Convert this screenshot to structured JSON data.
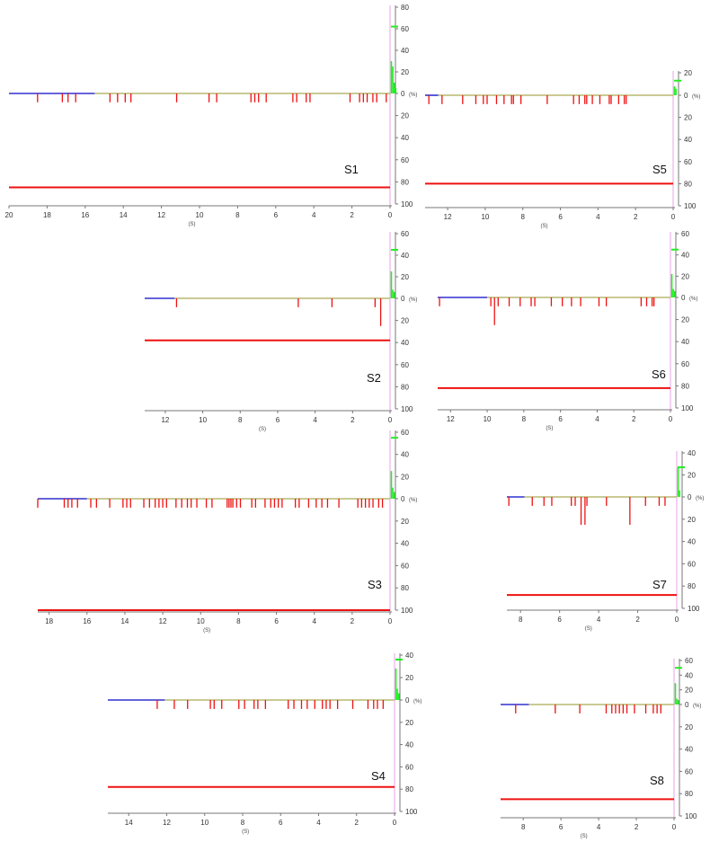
{
  "colors": {
    "baseline_before": "#3030d0",
    "baseline_after": "#b8b870",
    "events": "#ee1111",
    "right_bars": "#22ee22",
    "threshold": "#ee1111",
    "pink_axis": "#e8a0e8",
    "axis": "#777777"
  },
  "chart_data": [
    {
      "type": "event-timeline",
      "label": "S1",
      "xunit": "(S)",
      "yunit": "(%)",
      "x_ticks": [
        "20",
        "18",
        "16",
        "14",
        "12",
        "10",
        "8",
        "6",
        "4",
        "2",
        "0"
      ],
      "xlim": [
        20,
        0
      ],
      "y_ticks_up": [
        "80",
        "60",
        "40",
        "20",
        "0"
      ],
      "y_ticks_down": [
        "20",
        "40",
        "60",
        "80",
        "100"
      ],
      "ylim": [
        100,
        80
      ],
      "baseline_switch_s": 15.5,
      "threshold_pct": 85,
      "events": [
        {
          "t": 18.5,
          "v": 8
        },
        {
          "t": 17.2,
          "v": 8
        },
        {
          "t": 16.9,
          "v": 8
        },
        {
          "t": 16.5,
          "v": 8
        },
        {
          "t": 14.7,
          "v": 8
        },
        {
          "t": 14.3,
          "v": 8
        },
        {
          "t": 13.9,
          "v": 8
        },
        {
          "t": 13.6,
          "v": 8
        },
        {
          "t": 11.2,
          "v": 8
        },
        {
          "t": 9.5,
          "v": 8
        },
        {
          "t": 9.1,
          "v": 8
        },
        {
          "t": 7.3,
          "v": 8
        },
        {
          "t": 7.1,
          "v": 8
        },
        {
          "t": 6.9,
          "v": 8
        },
        {
          "t": 6.5,
          "v": 8
        },
        {
          "t": 5.1,
          "v": 8
        },
        {
          "t": 4.9,
          "v": 8
        },
        {
          "t": 4.4,
          "v": 8
        },
        {
          "t": 4.2,
          "v": 8
        },
        {
          "t": 2.1,
          "v": 8
        },
        {
          "t": 1.6,
          "v": 8
        },
        {
          "t": 1.4,
          "v": 8
        },
        {
          "t": 1.2,
          "v": 8
        },
        {
          "t": 0.9,
          "v": 8
        },
        {
          "t": 0.7,
          "v": 8
        },
        {
          "t": 0.2,
          "v": 8
        }
      ],
      "right_bars": [
        30,
        25,
        10,
        5
      ],
      "top_marker": 62
    },
    {
      "type": "event-timeline",
      "label": "S5",
      "xunit": "(S)",
      "yunit": "(%)",
      "x_ticks": [
        "12",
        "10",
        "8",
        "6",
        "4",
        "2",
        "0"
      ],
      "xlim": [
        13.2,
        0
      ],
      "y_ticks_up": [
        "20",
        "0"
      ],
      "y_ticks_down": [
        "20",
        "40",
        "60",
        "80",
        "100"
      ],
      "ylim": [
        100,
        20
      ],
      "baseline_switch_s": 12.5,
      "threshold_pct": 80,
      "events": [
        {
          "t": 13.0,
          "v": 8
        },
        {
          "t": 12.3,
          "v": 8
        },
        {
          "t": 11.2,
          "v": 8
        },
        {
          "t": 10.5,
          "v": 8
        },
        {
          "t": 10.1,
          "v": 8
        },
        {
          "t": 9.9,
          "v": 8
        },
        {
          "t": 9.4,
          "v": 8
        },
        {
          "t": 9.0,
          "v": 8
        },
        {
          "t": 8.6,
          "v": 8
        },
        {
          "t": 8.5,
          "v": 8
        },
        {
          "t": 8.1,
          "v": 8
        },
        {
          "t": 6.7,
          "v": 8
        },
        {
          "t": 5.3,
          "v": 8
        },
        {
          "t": 5.0,
          "v": 8
        },
        {
          "t": 4.7,
          "v": 8
        },
        {
          "t": 4.6,
          "v": 8
        },
        {
          "t": 4.3,
          "v": 8
        },
        {
          "t": 3.9,
          "v": 8
        },
        {
          "t": 3.4,
          "v": 8
        },
        {
          "t": 3.3,
          "v": 8
        },
        {
          "t": 2.9,
          "v": 8
        },
        {
          "t": 2.6,
          "v": 8
        },
        {
          "t": 2.5,
          "v": 8
        }
      ],
      "right_bars": [
        8,
        6
      ],
      "top_marker": 13
    },
    {
      "type": "event-timeline",
      "label": "S2",
      "xunit": "(S)",
      "yunit": "(%)",
      "x_ticks": [
        "12",
        "10",
        "8",
        "6",
        "4",
        "2",
        "0"
      ],
      "xlim": [
        13.1,
        0
      ],
      "y_ticks_up": [
        "60",
        "40",
        "20",
        "0"
      ],
      "y_ticks_down": [
        "20",
        "40",
        "60",
        "80",
        "100"
      ],
      "ylim": [
        100,
        60
      ],
      "baseline_switch_s": 11.5,
      "threshold_pct": 38,
      "events": [
        {
          "t": 11.4,
          "v": 8
        },
        {
          "t": 4.9,
          "v": 8
        },
        {
          "t": 3.1,
          "v": 8
        },
        {
          "t": 0.8,
          "v": 8
        },
        {
          "t": 0.5,
          "v": 25
        }
      ],
      "right_bars": [
        25,
        8,
        6
      ],
      "top_marker": 45
    },
    {
      "type": "event-timeline",
      "label": "S6",
      "xunit": "(S)",
      "yunit": "(%)",
      "x_ticks": [
        "12",
        "10",
        "8",
        "6",
        "4",
        "2",
        "0"
      ],
      "xlim": [
        12.7,
        0
      ],
      "y_ticks_up": [
        "60",
        "40",
        "20",
        "0"
      ],
      "y_ticks_down": [
        "20",
        "40",
        "60",
        "80",
        "100"
      ],
      "ylim": [
        100,
        60
      ],
      "baseline_switch_s": 10.0,
      "threshold_pct": 82,
      "events": [
        {
          "t": 12.6,
          "v": 8
        },
        {
          "t": 9.8,
          "v": 8
        },
        {
          "t": 9.6,
          "v": 25
        },
        {
          "t": 9.4,
          "v": 8
        },
        {
          "t": 8.8,
          "v": 8
        },
        {
          "t": 8.2,
          "v": 8
        },
        {
          "t": 7.6,
          "v": 8
        },
        {
          "t": 7.4,
          "v": 8
        },
        {
          "t": 6.5,
          "v": 8
        },
        {
          "t": 5.9,
          "v": 8
        },
        {
          "t": 5.4,
          "v": 8
        },
        {
          "t": 4.9,
          "v": 8
        },
        {
          "t": 3.9,
          "v": 8
        },
        {
          "t": 3.5,
          "v": 8
        },
        {
          "t": 1.6,
          "v": 8
        },
        {
          "t": 1.3,
          "v": 8
        },
        {
          "t": 1.0,
          "v": 8
        },
        {
          "t": 0.9,
          "v": 8
        }
      ],
      "right_bars": [
        22,
        8,
        6
      ],
      "top_marker": 45
    },
    {
      "type": "event-timeline",
      "label": "S3",
      "xunit": "(S)",
      "yunit": "(%)",
      "x_ticks": [
        "18",
        "16",
        "14",
        "12",
        "10",
        "8",
        "6",
        "4",
        "2",
        "0"
      ],
      "xlim": [
        18.6,
        0
      ],
      "y_ticks_up": [
        "60",
        "40",
        "20",
        "0"
      ],
      "y_ticks_down": [
        "20",
        "40",
        "60",
        "80",
        "100"
      ],
      "ylim": [
        100,
        60
      ],
      "baseline_switch_s": 16.0,
      "threshold_pct": 100,
      "events": [
        {
          "t": 18.6,
          "v": 8
        },
        {
          "t": 17.2,
          "v": 8
        },
        {
          "t": 17.0,
          "v": 8
        },
        {
          "t": 16.8,
          "v": 8
        },
        {
          "t": 16.5,
          "v": 8
        },
        {
          "t": 15.8,
          "v": 8
        },
        {
          "t": 15.5,
          "v": 8
        },
        {
          "t": 14.8,
          "v": 8
        },
        {
          "t": 14.1,
          "v": 8
        },
        {
          "t": 13.9,
          "v": 8
        },
        {
          "t": 13.7,
          "v": 8
        },
        {
          "t": 13.0,
          "v": 8
        },
        {
          "t": 12.7,
          "v": 8
        },
        {
          "t": 12.4,
          "v": 8
        },
        {
          "t": 12.2,
          "v": 8
        },
        {
          "t": 12.0,
          "v": 8
        },
        {
          "t": 11.8,
          "v": 8
        },
        {
          "t": 11.3,
          "v": 8
        },
        {
          "t": 11.0,
          "v": 8
        },
        {
          "t": 10.7,
          "v": 8
        },
        {
          "t": 10.5,
          "v": 8
        },
        {
          "t": 10.2,
          "v": 8
        },
        {
          "t": 9.7,
          "v": 8
        },
        {
          "t": 9.4,
          "v": 8
        },
        {
          "t": 8.6,
          "v": 8
        },
        {
          "t": 8.5,
          "v": 8
        },
        {
          "t": 8.4,
          "v": 8
        },
        {
          "t": 8.3,
          "v": 8
        },
        {
          "t": 8.1,
          "v": 8
        },
        {
          "t": 7.9,
          "v": 8
        },
        {
          "t": 7.3,
          "v": 8
        },
        {
          "t": 7.1,
          "v": 8
        },
        {
          "t": 6.6,
          "v": 8
        },
        {
          "t": 6.3,
          "v": 8
        },
        {
          "t": 6.1,
          "v": 8
        },
        {
          "t": 5.9,
          "v": 8
        },
        {
          "t": 5.7,
          "v": 8
        },
        {
          "t": 5.0,
          "v": 8
        },
        {
          "t": 4.8,
          "v": 8
        },
        {
          "t": 4.3,
          "v": 8
        },
        {
          "t": 3.9,
          "v": 8
        },
        {
          "t": 3.6,
          "v": 8
        },
        {
          "t": 3.3,
          "v": 8
        },
        {
          "t": 2.7,
          "v": 8
        },
        {
          "t": 1.7,
          "v": 8
        },
        {
          "t": 1.5,
          "v": 8
        },
        {
          "t": 1.3,
          "v": 8
        },
        {
          "t": 1.1,
          "v": 8
        },
        {
          "t": 0.9,
          "v": 8
        },
        {
          "t": 0.6,
          "v": 8
        },
        {
          "t": 0.4,
          "v": 8
        }
      ],
      "right_bars": [
        25,
        10,
        6
      ],
      "top_marker": 55
    },
    {
      "type": "event-timeline",
      "label": "S7",
      "xunit": "(S)",
      "yunit": "(%)",
      "x_ticks": [
        "8",
        "6",
        "4",
        "2",
        "0"
      ],
      "xlim": [
        8.7,
        0
      ],
      "y_ticks_up": [
        "40",
        "20",
        "0"
      ],
      "y_ticks_down": [
        "20",
        "40",
        "60",
        "80",
        "100"
      ],
      "ylim": [
        100,
        40
      ],
      "baseline_switch_s": 7.8,
      "threshold_pct": 88,
      "events": [
        {
          "t": 8.6,
          "v": 8
        },
        {
          "t": 7.4,
          "v": 8
        },
        {
          "t": 6.8,
          "v": 8
        },
        {
          "t": 6.4,
          "v": 8
        },
        {
          "t": 5.4,
          "v": 8
        },
        {
          "t": 5.2,
          "v": 8
        },
        {
          "t": 4.9,
          "v": 25
        },
        {
          "t": 4.7,
          "v": 25
        },
        {
          "t": 4.6,
          "v": 8
        },
        {
          "t": 3.6,
          "v": 8
        },
        {
          "t": 2.4,
          "v": 25
        },
        {
          "t": 1.6,
          "v": 8
        },
        {
          "t": 0.9,
          "v": 8
        },
        {
          "t": 0.6,
          "v": 8
        }
      ],
      "right_bars": [
        27,
        6
      ],
      "top_marker": 27
    },
    {
      "type": "event-timeline",
      "label": "S4",
      "xunit": "(S)",
      "yunit": "(%)",
      "x_ticks": [
        "14",
        "12",
        "10",
        "8",
        "6",
        "4",
        "2",
        "0"
      ],
      "xlim": [
        15.1,
        0
      ],
      "y_ticks_up": [
        "40",
        "20",
        "0"
      ],
      "y_ticks_down": [
        "20",
        "40",
        "60",
        "80",
        "100"
      ],
      "ylim": [
        100,
        40
      ],
      "baseline_switch_s": 12.1,
      "threshold_pct": 78,
      "events": [
        {
          "t": 12.5,
          "v": 8
        },
        {
          "t": 11.6,
          "v": 8
        },
        {
          "t": 10.9,
          "v": 8
        },
        {
          "t": 9.7,
          "v": 8
        },
        {
          "t": 9.5,
          "v": 8
        },
        {
          "t": 9.1,
          "v": 8
        },
        {
          "t": 8.2,
          "v": 8
        },
        {
          "t": 7.9,
          "v": 8
        },
        {
          "t": 7.4,
          "v": 8
        },
        {
          "t": 7.2,
          "v": 8
        },
        {
          "t": 6.8,
          "v": 8
        },
        {
          "t": 5.6,
          "v": 8
        },
        {
          "t": 5.3,
          "v": 8
        },
        {
          "t": 4.9,
          "v": 8
        },
        {
          "t": 4.6,
          "v": 8
        },
        {
          "t": 4.2,
          "v": 8
        },
        {
          "t": 3.8,
          "v": 8
        },
        {
          "t": 3.6,
          "v": 8
        },
        {
          "t": 3.4,
          "v": 8
        },
        {
          "t": 3.0,
          "v": 8
        },
        {
          "t": 2.2,
          "v": 8
        },
        {
          "t": 1.4,
          "v": 8
        },
        {
          "t": 1.1,
          "v": 8
        },
        {
          "t": 0.9,
          "v": 8
        },
        {
          "t": 0.6,
          "v": 8
        }
      ],
      "right_bars": [
        28,
        10,
        6
      ],
      "top_marker": 36
    },
    {
      "type": "event-timeline",
      "label": "S8",
      "xunit": "(S)",
      "yunit": "(%)",
      "x_ticks": [
        "8",
        "6",
        "4",
        "2",
        "0"
      ],
      "xlim": [
        9.2,
        0
      ],
      "y_ticks_up": [
        "60",
        "40",
        "20",
        "0"
      ],
      "y_ticks_down": [
        "20",
        "40",
        "60",
        "80",
        "100"
      ],
      "ylim": [
        100,
        60
      ],
      "baseline_switch_s": 7.7,
      "threshold_pct": 85,
      "events": [
        {
          "t": 8.4,
          "v": 8
        },
        {
          "t": 6.3,
          "v": 8
        },
        {
          "t": 5.0,
          "v": 8
        },
        {
          "t": 3.6,
          "v": 8
        },
        {
          "t": 3.3,
          "v": 8
        },
        {
          "t": 3.1,
          "v": 8
        },
        {
          "t": 2.9,
          "v": 8
        },
        {
          "t": 2.7,
          "v": 8
        },
        {
          "t": 2.5,
          "v": 8
        },
        {
          "t": 2.1,
          "v": 8
        },
        {
          "t": 1.5,
          "v": 8
        },
        {
          "t": 1.1,
          "v": 8
        },
        {
          "t": 0.9,
          "v": 8
        },
        {
          "t": 0.7,
          "v": 8
        }
      ],
      "right_bars": [
        29,
        8,
        6
      ],
      "top_marker": 50
    }
  ]
}
